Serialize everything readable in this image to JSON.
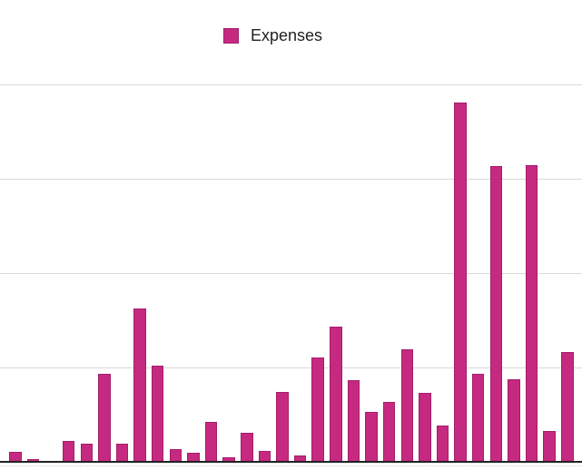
{
  "legend": {
    "label": "Expenses"
  },
  "colors": {
    "bar_fill": "#C62A80",
    "bar_border": "#A21E6B",
    "gridline": "#D9D9D9",
    "axis": "#212121",
    "background": "#FFFFFF",
    "legend_text": "#222222"
  },
  "chart_data": {
    "type": "bar",
    "title": "",
    "xlabel": "",
    "ylabel": "",
    "legend_position": "top",
    "grid": true,
    "axis_tick_labels_visible": false,
    "num_bars": 32,
    "ylim": [
      0,
      4
    ],
    "gridline_interval": 1,
    "series": [
      {
        "name": "Expenses",
        "values": [
          0.11,
          0.03,
          0,
          0.22,
          0.19,
          0.93,
          0.19,
          1.62,
          1.02,
          0.13,
          0.1,
          0.42,
          0.05,
          0.31,
          0.12,
          0.74,
          0.07,
          1.1,
          1.43,
          0.86,
          0.53,
          0.63,
          1.19,
          0.73,
          0.38,
          3.8,
          0.93,
          3.13,
          0.87,
          3.14,
          0.33,
          1.16
        ]
      }
    ]
  }
}
